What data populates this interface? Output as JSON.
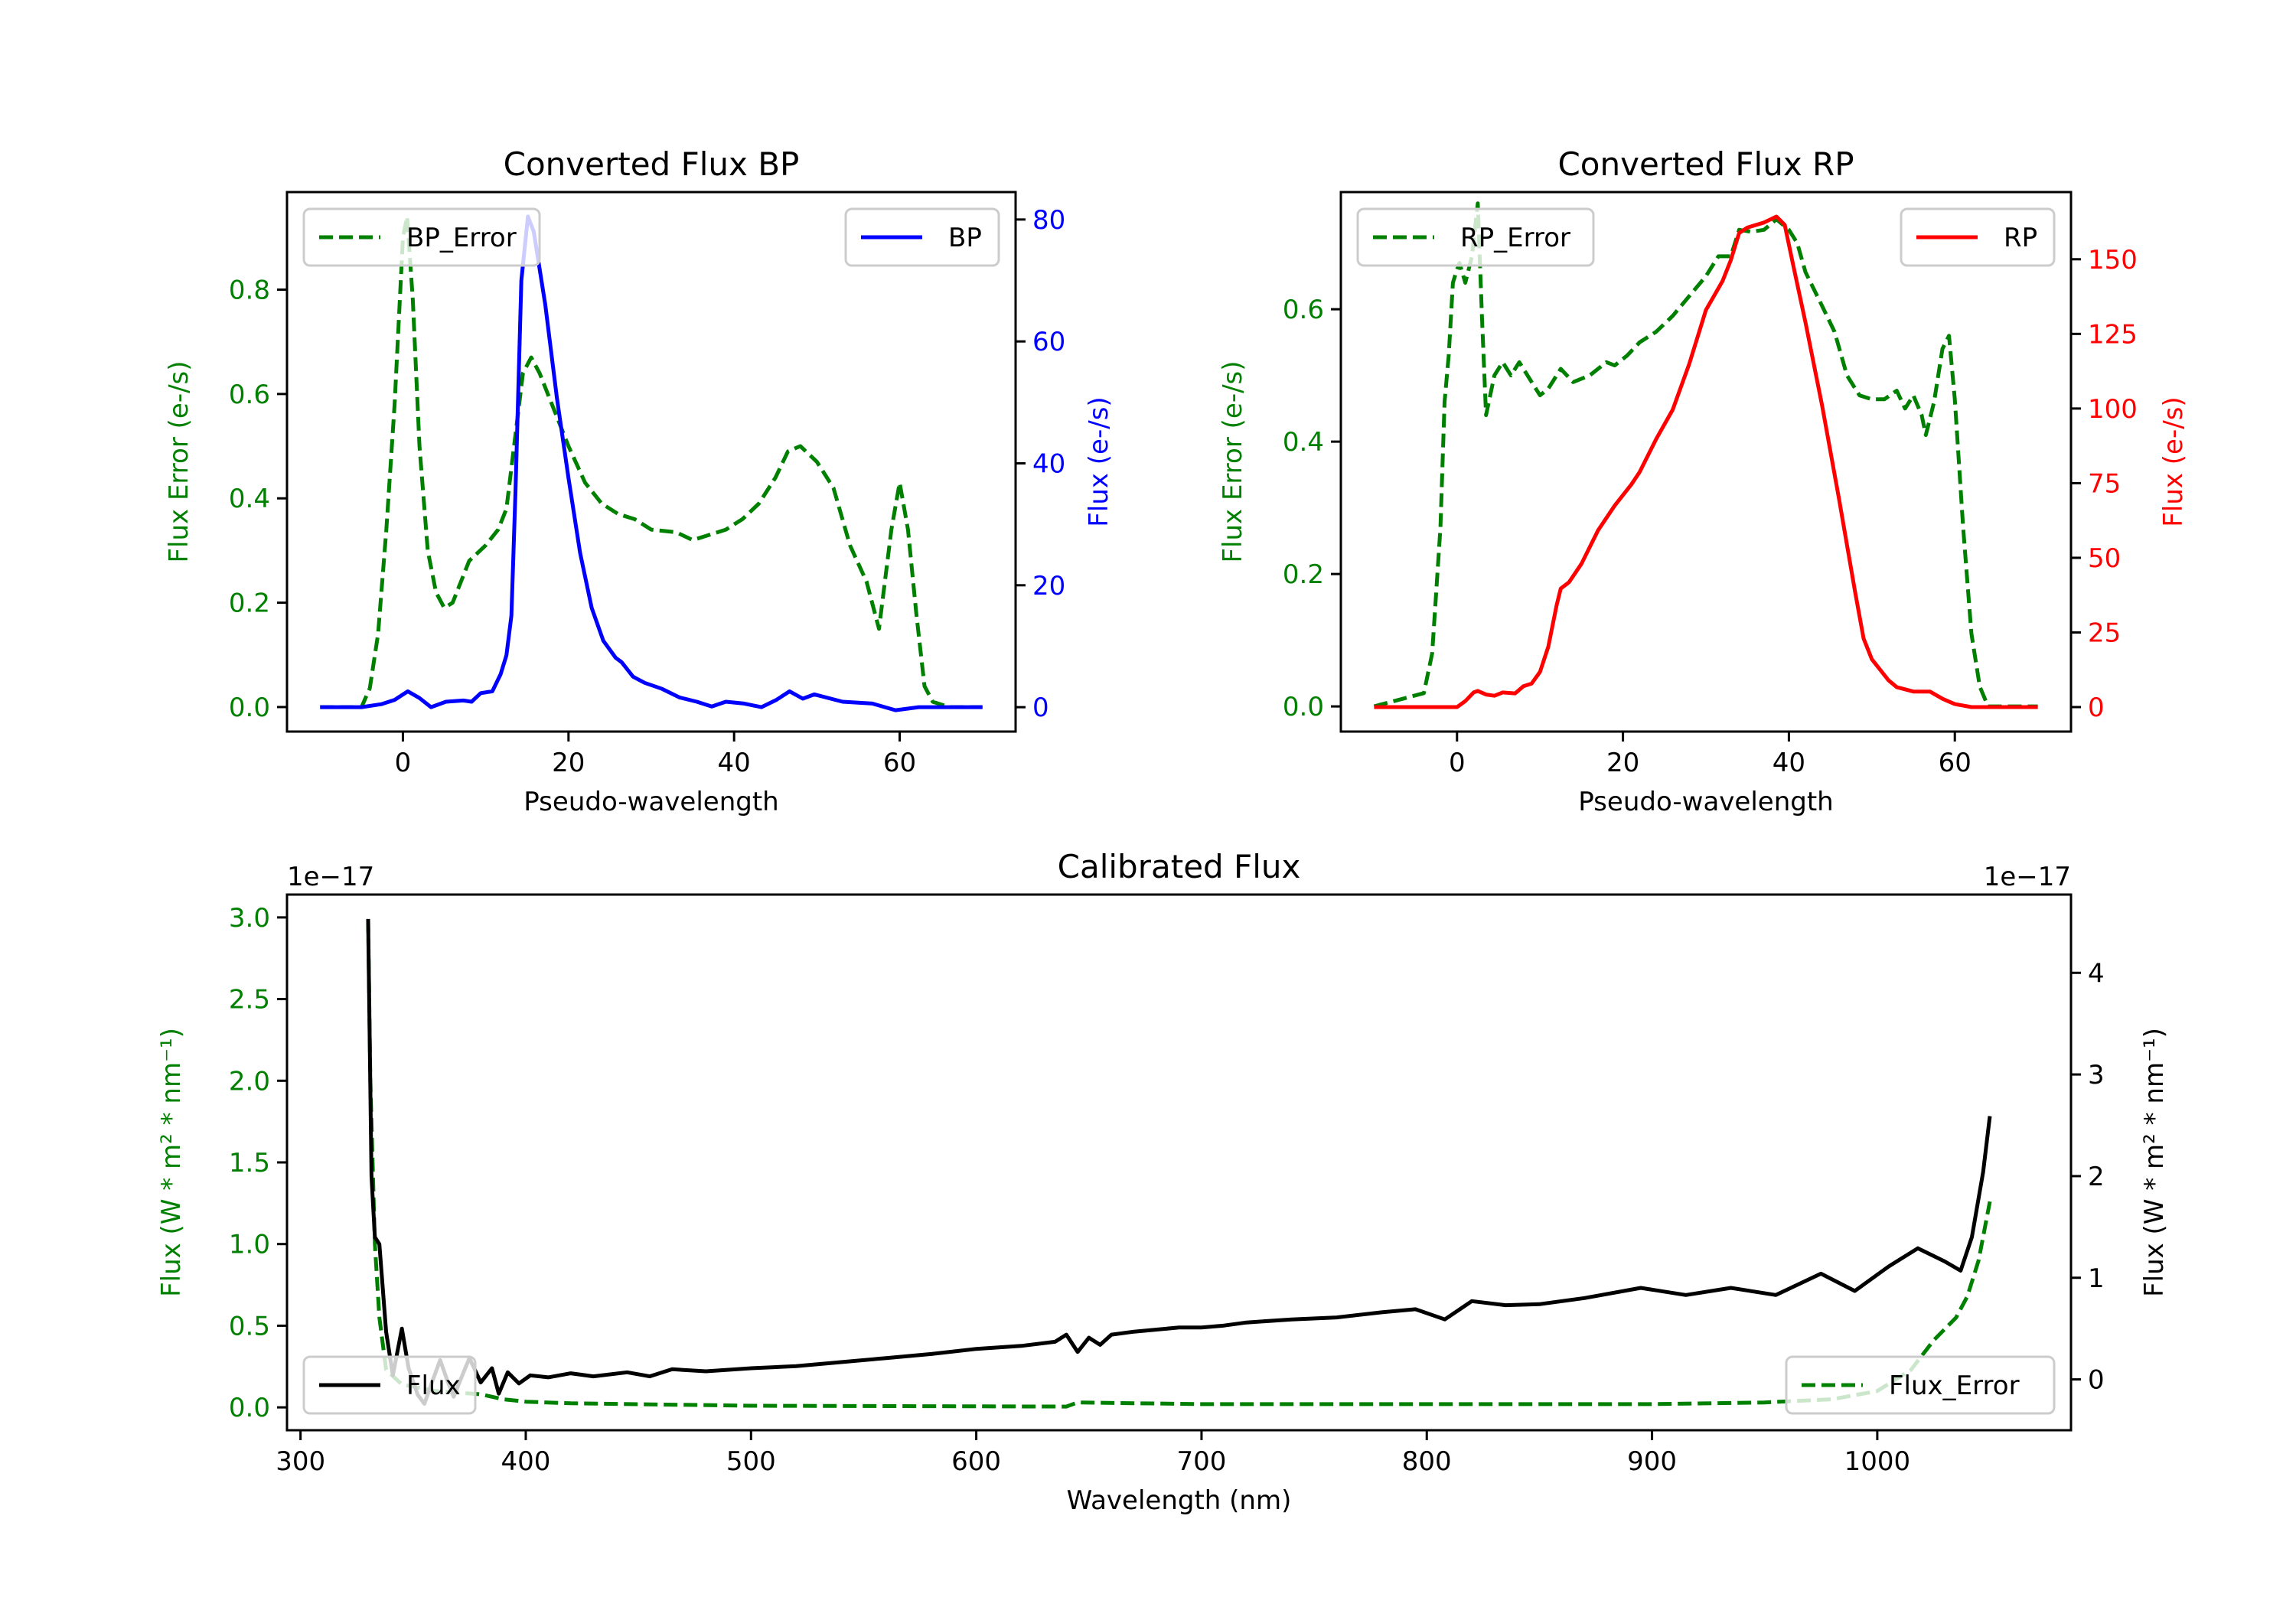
{
  "figure": {
    "background": "#ffffff"
  },
  "colors": {
    "error_green": "#008000",
    "bp_blue": "#0000ff",
    "rp_red": "#ff0000",
    "flux_black": "#000000"
  },
  "chart_data": [
    {
      "id": "bp",
      "type": "line",
      "title": "Converted Flux BP",
      "xlabel": "Pseudo-wavelength",
      "xlim": [
        -14,
        74
      ],
      "xticks": [
        0,
        20,
        40,
        60
      ],
      "grid": false,
      "left_axis": {
        "label": "Flux Error (e-/s)",
        "color": "#008000",
        "ylim": [
          -0.047,
          0.987
        ],
        "ticks": [
          0.0,
          0.2,
          0.4,
          0.6,
          0.8
        ],
        "tick_format": "0.0"
      },
      "right_axis": {
        "label": "Flux (e-/s)",
        "color": "#0000ff",
        "ylim": [
          -4.0,
          84.5
        ],
        "ticks": [
          0,
          20,
          40,
          60,
          80
        ],
        "tick_format": "0"
      },
      "series": [
        {
          "name": "BP_Error",
          "axis": "left",
          "style": "dashed",
          "color": "#008000",
          "legend": "top-left",
          "x": [
            -10,
            -5,
            -4,
            -3,
            -2,
            -1,
            0,
            0.5,
            1.2,
            2,
            3,
            4,
            5,
            6,
            8,
            10,
            11.5,
            12.5,
            13.5,
            14.5,
            15.5,
            16.5,
            18,
            20,
            22,
            24,
            26,
            28,
            30,
            33,
            35,
            37,
            39,
            41,
            43,
            45,
            46.5,
            48,
            50,
            52,
            54,
            56,
            57.5,
            59,
            60,
            61,
            62,
            63,
            64,
            66,
            70
          ],
          "y": [
            0,
            0,
            0.036,
            0.14,
            0.34,
            0.58,
            0.9,
            0.94,
            0.78,
            0.5,
            0.3,
            0.22,
            0.19,
            0.2,
            0.28,
            0.31,
            0.34,
            0.38,
            0.51,
            0.64,
            0.67,
            0.64,
            0.58,
            0.5,
            0.43,
            0.39,
            0.37,
            0.36,
            0.34,
            0.335,
            0.32,
            0.33,
            0.34,
            0.36,
            0.39,
            0.44,
            0.49,
            0.5,
            0.47,
            0.42,
            0.31,
            0.24,
            0.15,
            0.34,
            0.43,
            0.34,
            0.18,
            0.04,
            0.01,
            0,
            0
          ]
        },
        {
          "name": "BP",
          "axis": "right",
          "style": "solid",
          "color": "#0000ff",
          "legend": "top-right",
          "x": [
            -10,
            -5,
            -2.6,
            -1,
            0.6,
            2,
            3.4,
            5.2,
            7.3,
            8.3,
            9.4,
            10.8,
            11.8,
            12.5,
            13.1,
            13.6,
            14.3,
            15.1,
            15.8,
            17.2,
            18.6,
            20,
            21.4,
            22.8,
            24.2,
            25.7,
            26.4,
            27.8,
            29.2,
            31.3,
            33.4,
            35.5,
            37.3,
            39,
            41.2,
            43.3,
            45.1,
            46.7,
            48.3,
            49.7,
            53.1,
            56.7,
            59.5,
            62.3,
            66,
            70
          ],
          "y": [
            0,
            0,
            0.5,
            1.2,
            2.6,
            1.5,
            0,
            0.9,
            1.1,
            0.9,
            2.3,
            2.6,
            5.4,
            8.5,
            15,
            35.6,
            70,
            80.5,
            78,
            66,
            50.7,
            37.6,
            25.3,
            16.3,
            10.9,
            8.1,
            7.4,
            5,
            4,
            3,
            1.6,
            0.9,
            0.1,
            0.9,
            0.6,
            0,
            1.2,
            2.6,
            1.4,
            2.1,
            0.9,
            0.6,
            -0.5,
            0,
            0,
            0
          ]
        }
      ],
      "legends": [
        {
          "label": "BP_Error",
          "loc": "upper left",
          "style": "dashed",
          "color": "#008000"
        },
        {
          "label": "BP",
          "loc": "upper right",
          "style": "solid",
          "color": "#0000ff"
        }
      ]
    },
    {
      "id": "rp",
      "type": "line",
      "title": "Converted Flux RP",
      "xlabel": "Pseudo-wavelength",
      "xlim": [
        -14,
        74
      ],
      "xticks": [
        0,
        20,
        40,
        60
      ],
      "grid": false,
      "left_axis": {
        "label": "Flux Error (e-/s)",
        "color": "#008000",
        "ylim": [
          -0.038,
          0.777
        ],
        "ticks": [
          0.0,
          0.2,
          0.4,
          0.6
        ],
        "tick_format": "0.0"
      },
      "right_axis": {
        "label": "Flux (e-/s)",
        "color": "#ff0000",
        "ylim": [
          -8.2,
          172.5
        ],
        "ticks": [
          0,
          25,
          50,
          75,
          100,
          125,
          150
        ],
        "tick_format": "0"
      },
      "series": [
        {
          "name": "RP_Error",
          "axis": "left",
          "style": "dashed",
          "color": "#008000",
          "x": [
            -10,
            -4,
            -3,
            -2,
            -1.5,
            -1,
            -0.5,
            0,
            0.3,
            1,
            1.8,
            2.5,
            3,
            3.5,
            4.5,
            5.5,
            6.5,
            7.5,
            9,
            10,
            11,
            12.5,
            14,
            16,
            18,
            19,
            20.5,
            22,
            24,
            26,
            28,
            30,
            31.5,
            33,
            34,
            35.5,
            37,
            38.5,
            40,
            41,
            42,
            44,
            45.5,
            47,
            48.5,
            50,
            51.5,
            53,
            54,
            55,
            56,
            56.5,
            57.5,
            58.5,
            59.3,
            60,
            61,
            62,
            63,
            64,
            70
          ],
          "y": [
            0,
            0.02,
            0.08,
            0.27,
            0.46,
            0.53,
            0.64,
            0.66,
            0.67,
            0.64,
            0.68,
            0.76,
            0.59,
            0.44,
            0.5,
            0.52,
            0.5,
            0.52,
            0.49,
            0.47,
            0.48,
            0.51,
            0.49,
            0.5,
            0.52,
            0.515,
            0.53,
            0.55,
            0.566,
            0.59,
            0.62,
            0.65,
            0.68,
            0.68,
            0.72,
            0.717,
            0.72,
            0.736,
            0.72,
            0.7,
            0.656,
            0.605,
            0.566,
            0.5,
            0.47,
            0.464,
            0.464,
            0.477,
            0.45,
            0.47,
            0.44,
            0.41,
            0.46,
            0.54,
            0.56,
            0.464,
            0.27,
            0.11,
            0.03,
            0,
            0
          ]
        },
        {
          "name": "RP",
          "axis": "right",
          "style": "solid",
          "color": "#ff0000",
          "x": [
            -10,
            -2,
            0,
            1,
            2,
            2.5,
            3.5,
            4.5,
            5.5,
            7,
            8,
            9,
            10,
            11,
            12,
            12.5,
            13.5,
            15,
            17,
            19,
            21,
            22,
            24,
            26,
            28,
            30,
            32,
            33,
            34,
            35,
            37,
            38.5,
            39.5,
            40.5,
            42,
            44,
            46,
            48,
            49,
            50,
            52,
            53,
            55,
            57,
            58.5,
            60,
            62,
            70
          ],
          "y": [
            0,
            0,
            0,
            2,
            4.9,
            5.4,
            4.2,
            3.8,
            4.9,
            4.6,
            7,
            7.9,
            11.8,
            20.2,
            34.1,
            39.7,
            41.8,
            48,
            59.2,
            67.5,
            74.5,
            78.7,
            89.8,
            99.6,
            115,
            133,
            142.7,
            149.7,
            158.8,
            160.6,
            162.3,
            164.3,
            161.5,
            148.3,
            128.8,
            101,
            70.3,
            38.3,
            23,
            16,
            9,
            6.7,
            5.2,
            5.2,
            2.8,
            1,
            0,
            0
          ]
        }
      ],
      "legends": [
        {
          "label": "RP_Error",
          "loc": "upper left",
          "style": "dashed",
          "color": "#008000"
        },
        {
          "label": "RP",
          "loc": "upper right",
          "style": "solid",
          "color": "#ff0000"
        }
      ]
    },
    {
      "id": "calibrated",
      "type": "line",
      "title": "Calibrated Flux",
      "xlabel": "Wavelength (nm)",
      "xlim": [
        294,
        1086
      ],
      "xticks": [
        300,
        400,
        500,
        600,
        700,
        800,
        900,
        1000
      ],
      "grid": false,
      "left_axis": {
        "label": "Flux (W * m² * nm⁻¹)",
        "color": "#008000",
        "offset_text": "1e−17",
        "ylim": [
          -0.14,
          3.14
        ],
        "ticks": [
          0.0,
          0.5,
          1.0,
          1.5,
          2.0,
          2.5,
          3.0
        ],
        "tick_format": "0.0"
      },
      "right_axis": {
        "label": "Flux (W * m² * nm⁻¹)",
        "color": "#000000",
        "offset_text": "1e−17",
        "ylim": [
          -0.5,
          4.77
        ],
        "ticks": [
          0,
          1,
          2,
          3,
          4
        ],
        "tick_format": "0"
      },
      "series": [
        {
          "name": "Flux_Error",
          "axis": "left",
          "style": "dashed",
          "color": "#008000",
          "x": [
            330,
            331,
            333,
            335,
            338,
            345,
            360,
            380,
            390,
            400,
            420,
            500,
            640,
            645,
            700,
            900,
            950,
            980,
            1000,
            1015,
            1025,
            1035,
            1040,
            1045,
            1050
          ],
          "y": [
            2.99,
            2.0,
            1.0,
            0.55,
            0.23,
            0.14,
            0.1,
            0.08,
            0.05,
            0.035,
            0.025,
            0.01,
            0.005,
            0.03,
            0.02,
            0.02,
            0.03,
            0.05,
            0.1,
            0.23,
            0.41,
            0.55,
            0.68,
            0.9,
            1.26
          ]
        },
        {
          "name": "Flux",
          "axis": "right",
          "style": "solid",
          "color": "#000000",
          "x": [
            330,
            331.5,
            333,
            335,
            338,
            341,
            345,
            348,
            352,
            355,
            358,
            362,
            365,
            368,
            372,
            375,
            380,
            385,
            388,
            392,
            397,
            402,
            410,
            420,
            430,
            445,
            455,
            465,
            480,
            500,
            520,
            540,
            560,
            580,
            600,
            620,
            635,
            640,
            645,
            650,
            655,
            660,
            670,
            680,
            690,
            700,
            710,
            720,
            740,
            760,
            780,
            795,
            808,
            820,
            835,
            850,
            870,
            895,
            915,
            935,
            955,
            975,
            990,
            1005,
            1018,
            1030,
            1037,
            1042,
            1047,
            1050
          ],
          "y": [
            4.53,
            2.0,
            1.4,
            1.33,
            0.47,
            0.04,
            0.5,
            0.11,
            -0.15,
            -0.24,
            -0.05,
            0.19,
            0.0,
            -0.17,
            0.05,
            0.21,
            -0.03,
            0.11,
            -0.14,
            0.07,
            -0.04,
            0.04,
            0.02,
            0.06,
            0.03,
            0.07,
            0.03,
            0.1,
            0.08,
            0.11,
            0.13,
            0.17,
            0.21,
            0.25,
            0.3,
            0.33,
            0.37,
            0.44,
            0.27,
            0.41,
            0.34,
            0.44,
            0.47,
            0.49,
            0.51,
            0.51,
            0.53,
            0.56,
            0.59,
            0.61,
            0.66,
            0.69,
            0.59,
            0.77,
            0.73,
            0.74,
            0.8,
            0.9,
            0.83,
            0.9,
            0.83,
            1.04,
            0.87,
            1.11,
            1.29,
            1.16,
            1.07,
            1.4,
            2.04,
            2.59
          ]
        }
      ],
      "legends": [
        {
          "label": "Flux",
          "loc": "lower left",
          "style": "solid",
          "color": "#000000"
        },
        {
          "label": "Flux_Error",
          "loc": "lower right",
          "style": "dashed",
          "color": "#008000"
        }
      ]
    }
  ]
}
